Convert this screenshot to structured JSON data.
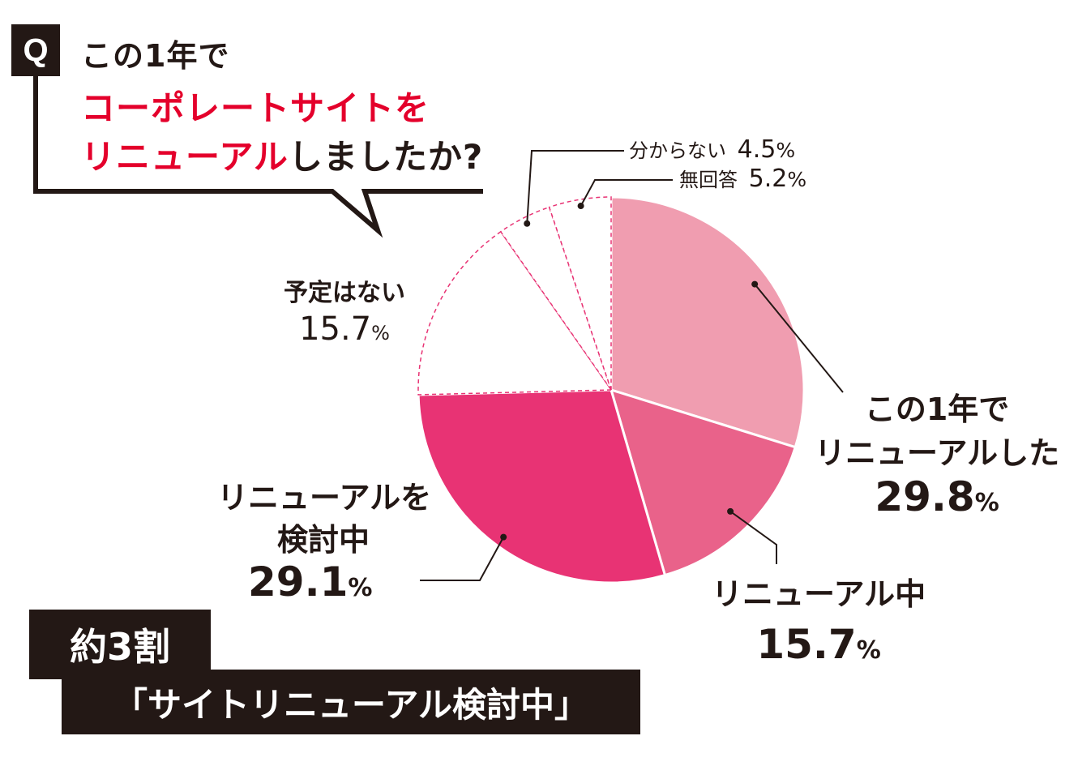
{
  "question": {
    "badge": "Q",
    "line1": "この1年で",
    "line2": "コーポレートサイトを",
    "line3_red": "リニューアル",
    "line3_rest": "しましたか?"
  },
  "chart_data": {
    "type": "pie",
    "slices": [
      {
        "label": "この1年でリニューアルした",
        "label_lines": [
          "この1年で",
          "リニューアルした"
        ],
        "value": 29.8,
        "pct_text": "29.8",
        "color": "#f09db0"
      },
      {
        "label": "リニューアル中",
        "label_lines": [
          "リニューアル中"
        ],
        "value": 15.7,
        "pct_text": "15.7",
        "color": "#e9628a"
      },
      {
        "label": "リニューアルを検討中",
        "label_lines": [
          "リニューアルを",
          "検討中"
        ],
        "value": 29.1,
        "pct_text": "29.1",
        "color": "#e83374"
      },
      {
        "label": "予定はない",
        "label_lines": [
          "予定はない"
        ],
        "value": 15.7,
        "pct_text": "15.7",
        "color": "#ffffff"
      },
      {
        "label": "分からない",
        "label_lines": [
          "分からない"
        ],
        "value": 4.5,
        "pct_text": "4.5",
        "color": "#ffffff"
      },
      {
        "label": "無回答",
        "label_lines": [
          "無回答"
        ],
        "value": 5.2,
        "pct_text": "5.2",
        "color": "#ffffff"
      }
    ],
    "unit": "%"
  },
  "banner": {
    "line1": "約3割",
    "line2": "「サイトリニューアル検討中」"
  },
  "colors": {
    "dark": "#231815",
    "accent_red": "#e4002b",
    "dashed_border": "#e83374"
  }
}
